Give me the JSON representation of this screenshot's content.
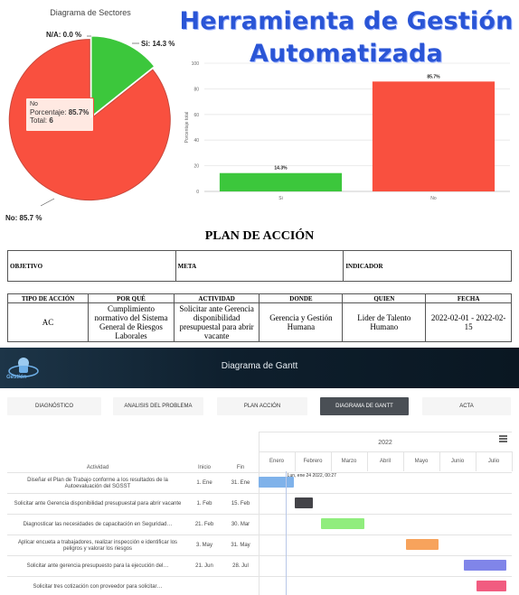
{
  "app_title_line1": "Herramienta de Gestión",
  "app_title_line2": "Automatizada",
  "pie": {
    "title": "Diagrama de Sectores",
    "label_na": "N/A: 0.0 %",
    "label_si": "Si: 14.3 %",
    "label_no": "No: 85.7 %",
    "tooltip": {
      "name": "No",
      "pct_label": "Porcentaje:",
      "pct_value": "85.7%",
      "total_label": "Total:",
      "total_value": "6"
    },
    "colors": {
      "si": "#3cc73c",
      "no": "#f9503f"
    }
  },
  "chart_data": [
    {
      "type": "pie",
      "title": "Diagrama de Sectores",
      "categories": [
        "N/A",
        "Si",
        "No"
      ],
      "values": [
        0.0,
        14.3,
        85.7
      ]
    },
    {
      "type": "bar",
      "categories": [
        "Si",
        "No"
      ],
      "values": [
        14.3,
        85.7
      ],
      "data_labels": [
        "14.3%",
        "85.7%"
      ],
      "ylabel": "Porcentaje total",
      "ylim": [
        0,
        100
      ],
      "yticks": [
        "0",
        "20",
        "40",
        "60",
        "80",
        "100"
      ],
      "grid": true,
      "colors": [
        "#3cc73c",
        "#f9503f"
      ]
    }
  ],
  "plan": {
    "title": "PLAN DE ACCIÓN",
    "objetivo": "OBJETIVO",
    "meta": "META",
    "indicador": "INDICADOR",
    "headers": [
      "TIPO DE ACCIÓN",
      "POR QUÉ",
      "ACTIVIDAD",
      "DONDE",
      "QUIEN",
      "FECHA"
    ],
    "row": {
      "tipo": "AC",
      "porque": "Cumplimiento normativo del Sistema General de Riesgos Laborales",
      "actividad": "Solicitar ante Gerencia disponibilidad presupuestal para abrir vacante",
      "donde": "Gerencia y Gestión Humana",
      "quien": "Lider de Talento Humano",
      "fecha": "2022-02-01 - 2022-02-15"
    }
  },
  "gantt_header": {
    "title": "Diagrama de Gantt",
    "logo_text": "Gestión"
  },
  "tabs": [
    "DIAGNÓSTICO",
    "ANALISIS DEL PROBLEMA",
    "PLAN ACCIÓN",
    "DIAGRAMA DE GANTT",
    "ACTA"
  ],
  "gantt": {
    "year": "2022",
    "col_activity": "Actividad",
    "col_start": "Inicio",
    "col_end": "Fin",
    "months": [
      "Enero",
      "Febrero",
      "Marzo",
      "Abril",
      "Mayo",
      "Junio",
      "Julio"
    ],
    "today_label": "Lun, ene 24 2022, 00:27",
    "rows": [
      {
        "activity": "Diseñar el Plan de Trabajo conforme a los resultados de la Autoevaluación del SGSST",
        "start": "1. Ene",
        "end": "31. Ene",
        "start_day": 0,
        "end_day": 30,
        "color": "#7fb2ea"
      },
      {
        "activity": "Solicitar ante Gerencia disponibilidad presupuestal para abrir vacante",
        "start": "1. Feb",
        "end": "15. Feb",
        "start_day": 31,
        "end_day": 45,
        "color": "#434348"
      },
      {
        "activity": "Diagnosticar las necesidades de capacitación en Seguridad…",
        "start": "21. Feb",
        "end": "30. Mar",
        "start_day": 51,
        "end_day": 88,
        "color": "#90ed7d"
      },
      {
        "activity": "Aplicar encueta a trabajadores, realizar inspección e identificar los peligros y valorar los riesgos",
        "start": "3. May",
        "end": "31. May",
        "start_day": 122,
        "end_day": 150,
        "color": "#f7a35c"
      },
      {
        "activity": "Solicitar ante gerencia presupuesto para la ejecución del…",
        "start": "21. Jun",
        "end": "28. Jul",
        "start_day": 171,
        "end_day": 208,
        "color": "#8085e9"
      },
      {
        "activity": "Solicitar tres cotización con proveedor para solicitar…",
        "start": "",
        "end": "",
        "start_day": 182,
        "end_day": 215,
        "color": "#f15c80"
      }
    ],
    "today_day": 23
  }
}
